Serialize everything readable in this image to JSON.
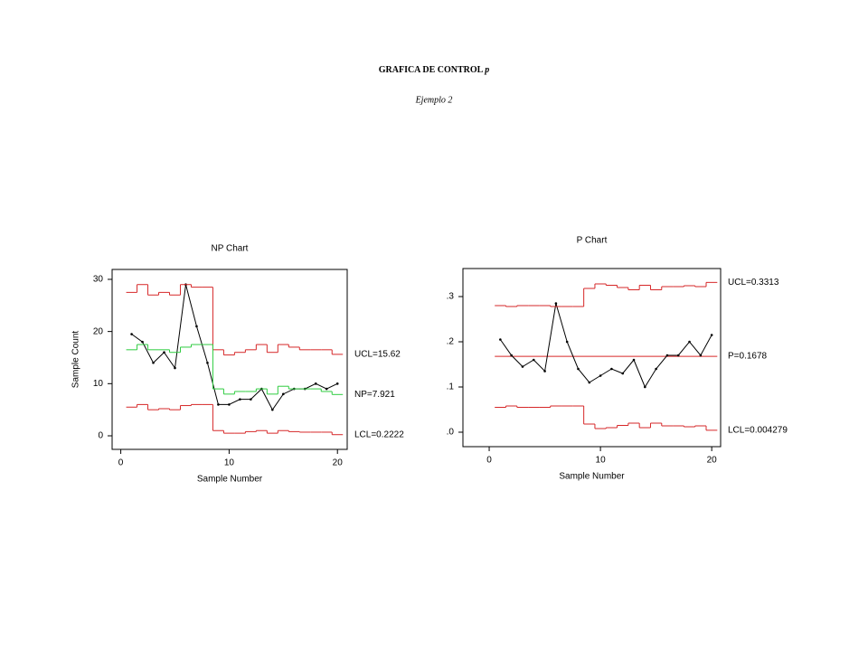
{
  "header": {
    "title": "GRAFICA DE CONTROL",
    "title_symbol": "p",
    "subtitle": "Ejemplo 2"
  },
  "chart_data": [
    {
      "type": "line",
      "title": "NP Chart",
      "xlabel": "Sample Number",
      "ylabel": "Sample Count",
      "x": [
        1,
        2,
        3,
        4,
        5,
        6,
        7,
        8,
        9,
        10,
        11,
        12,
        13,
        14,
        15,
        16,
        17,
        18,
        19,
        20
      ],
      "xlim": [
        -0.8,
        20.9
      ],
      "xticks": [
        0,
        10,
        20
      ],
      "ylim": [
        -2.6,
        31.9
      ],
      "yticks": [
        0,
        10,
        20,
        30
      ],
      "series": [
        {
          "color": "#000000",
          "drawstyle": "line",
          "markers": true,
          "values": [
            19.5,
            18,
            14,
            16,
            13,
            29,
            21,
            14,
            6,
            6,
            7,
            7,
            9,
            5,
            8,
            9,
            9,
            10,
            9,
            10
          ]
        },
        {
          "color": "#d62728",
          "drawstyle": "steps-mid",
          "values": [
            27.5,
            29,
            27,
            27.5,
            27,
            29,
            28.5,
            28.5,
            16.5,
            15.5,
            16,
            16.5,
            17.5,
            16,
            17.5,
            17,
            16.5,
            16.5,
            16.5,
            15.62
          ]
        },
        {
          "color": "#2ecc40",
          "drawstyle": "steps-mid",
          "values": [
            16.5,
            17.5,
            16.5,
            16.5,
            16,
            17,
            17.5,
            17.5,
            9,
            8,
            8.5,
            8.5,
            9,
            8,
            9.5,
            9,
            9,
            9,
            8.5,
            7.921
          ]
        },
        {
          "color": "#d62728",
          "drawstyle": "steps-mid",
          "values": [
            5.5,
            6,
            5,
            5.2,
            5,
            5.8,
            6,
            6,
            1,
            0.5,
            0.5,
            0.8,
            1,
            0.5,
            1,
            0.8,
            0.7,
            0.7,
            0.7,
            0.2222
          ]
        }
      ],
      "annotations": [
        {
          "text": "UCL=15.62",
          "y": 15.62
        },
        {
          "text": "NP=7.921",
          "y": 7.921
        },
        {
          "text": "LCL=0.2222",
          "y": 0.2222
        }
      ]
    },
    {
      "type": "line",
      "title": "P Chart",
      "xlabel": "Sample Number",
      "x": [
        1,
        2,
        3,
        4,
        5,
        6,
        7,
        8,
        9,
        10,
        11,
        12,
        13,
        14,
        15,
        16,
        17,
        18,
        19,
        20
      ],
      "xlim": [
        -2.36,
        20.8
      ],
      "xticks": [
        0,
        10,
        20
      ],
      "ylim": [
        -0.032,
        0.362
      ],
      "yticks": [
        {
          "value": 0,
          "label": ".0"
        },
        {
          "value": 0.1,
          "label": ".1"
        },
        {
          "value": 0.2,
          "label": ".2"
        },
        {
          "value": 0.3,
          "label": ".3"
        }
      ],
      "series": [
        {
          "color": "#000000",
          "drawstyle": "line",
          "markers": true,
          "values": [
            0.205,
            0.17,
            0.145,
            0.16,
            0.135,
            0.285,
            0.2,
            0.14,
            0.11,
            0.125,
            0.14,
            0.13,
            0.16,
            0.1,
            0.14,
            0.17,
            0.17,
            0.2,
            0.17,
            0.215
          ]
        },
        {
          "color": "#d62728",
          "drawstyle": "steps-mid",
          "values": [
            0.28,
            0.278,
            0.28,
            0.28,
            0.28,
            0.278,
            0.278,
            0.278,
            0.318,
            0.328,
            0.325,
            0.32,
            0.315,
            0.325,
            0.315,
            0.322,
            0.322,
            0.324,
            0.322,
            0.3313
          ]
        },
        {
          "color": "#d62728",
          "drawstyle": "steps-mid",
          "values": [
            0.055,
            0.058,
            0.055,
            0.055,
            0.055,
            0.058,
            0.058,
            0.058,
            0.018,
            0.008,
            0.01,
            0.015,
            0.02,
            0.01,
            0.02,
            0.014,
            0.014,
            0.012,
            0.014,
            0.004279
          ]
        }
      ],
      "hlines": [
        {
          "value": 0.1678,
          "color": "#d62728"
        }
      ],
      "annotations": [
        {
          "text": "UCL=0.3313",
          "y": 0.3313
        },
        {
          "text": "P=0.1678",
          "y": 0.1678
        },
        {
          "text": "LCL=0.004279",
          "y": 0.004279
        }
      ]
    }
  ]
}
